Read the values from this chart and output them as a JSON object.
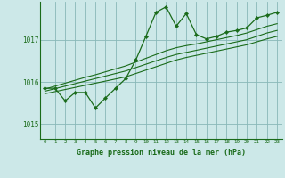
{
  "title": "Graphe pression niveau de la mer (hPa)",
  "background_color": "#cce8e8",
  "grid_color": "#88b8b8",
  "line_color": "#1a6b1a",
  "ylim": [
    1014.65,
    1017.9
  ],
  "yticks": [
    1015,
    1016,
    1017
  ],
  "xlim": [
    -0.5,
    23.5
  ],
  "xticks": [
    0,
    1,
    2,
    3,
    4,
    5,
    6,
    7,
    8,
    9,
    10,
    11,
    12,
    13,
    14,
    15,
    16,
    17,
    18,
    19,
    20,
    21,
    22,
    23
  ],
  "main_data": [
    1015.85,
    1015.85,
    1015.55,
    1015.75,
    1015.75,
    1015.38,
    1015.62,
    1015.85,
    1016.08,
    1016.52,
    1017.08,
    1017.65,
    1017.78,
    1017.32,
    1017.62,
    1017.12,
    1017.02,
    1017.08,
    1017.18,
    1017.22,
    1017.28,
    1017.52,
    1017.58,
    1017.65
  ],
  "linear_data_low": [
    1015.72,
    1015.77,
    1015.82,
    1015.87,
    1015.92,
    1015.97,
    1016.02,
    1016.07,
    1016.12,
    1016.2,
    1016.28,
    1016.36,
    1016.44,
    1016.52,
    1016.58,
    1016.63,
    1016.68,
    1016.73,
    1016.78,
    1016.83,
    1016.88,
    1016.95,
    1017.02,
    1017.08
  ],
  "linear_data_mid": [
    1015.78,
    1015.84,
    1015.9,
    1015.96,
    1016.02,
    1016.08,
    1016.14,
    1016.2,
    1016.26,
    1016.34,
    1016.42,
    1016.5,
    1016.58,
    1016.65,
    1016.7,
    1016.75,
    1016.8,
    1016.85,
    1016.9,
    1016.95,
    1017.0,
    1017.08,
    1017.16,
    1017.22
  ],
  "linear_data_high": [
    1015.83,
    1015.9,
    1015.97,
    1016.04,
    1016.11,
    1016.17,
    1016.24,
    1016.31,
    1016.38,
    1016.47,
    1016.56,
    1016.65,
    1016.74,
    1016.81,
    1016.86,
    1016.9,
    1016.95,
    1017.0,
    1017.05,
    1017.1,
    1017.16,
    1017.24,
    1017.32,
    1017.38
  ]
}
